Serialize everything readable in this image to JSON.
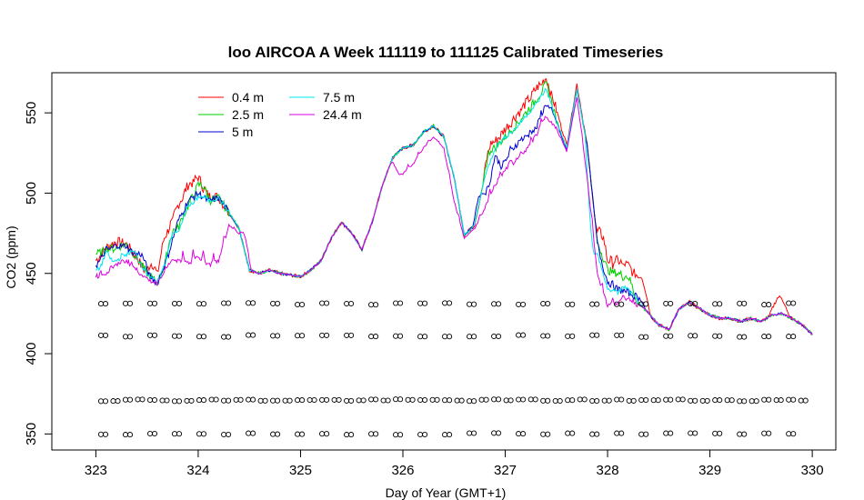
{
  "chart_data": {
    "type": "line",
    "title": "loo AIRCOA A  Week 111119 to 111125  Calibrated Timeseries",
    "xlabel": "Day of Year (GMT+1)",
    "ylabel": "CO2 (ppm)",
    "xlim": [
      322.57,
      330.23
    ],
    "ylim": [
      340,
      575
    ],
    "xticks": [
      323,
      324,
      325,
      326,
      327,
      328,
      329,
      330
    ],
    "xtick_labels": [
      "323",
      "324",
      "325",
      "326",
      "327",
      "328",
      "329",
      "330"
    ],
    "yticks": [
      350,
      400,
      450,
      500,
      550
    ],
    "ytick_labels": [
      "350",
      "400",
      "450",
      "500",
      "550"
    ],
    "grid": false,
    "legend_position": "top-left",
    "legend": [
      {
        "label": "0.4 m",
        "color": "#ff0000"
      },
      {
        "label": "2.5 m",
        "color": "#00cd00"
      },
      {
        "label": "5 m",
        "color": "#0000cd"
      },
      {
        "label": "7.5 m",
        "color": "#00e5ee"
      },
      {
        "label": "24.4 m",
        "color": "#dd00dd"
      }
    ],
    "base_series": {
      "x": [
        323.0,
        323.1,
        323.2,
        323.3,
        323.4,
        323.5,
        323.6,
        323.7,
        323.8,
        323.9,
        324.0,
        324.1,
        324.2,
        324.3,
        324.4,
        324.5,
        324.6,
        324.7,
        324.8,
        324.9,
        325.0,
        325.1,
        325.2,
        325.3,
        325.4,
        325.5,
        325.6,
        325.7,
        325.8,
        325.9,
        326.0,
        326.1,
        326.2,
        326.3,
        326.4,
        326.5,
        326.6,
        326.7,
        326.8,
        326.9,
        327.0,
        327.1,
        327.2,
        327.3,
        327.4,
        327.5,
        327.6,
        327.7,
        327.8,
        327.9,
        328.0,
        328.1,
        328.2,
        328.3,
        328.4,
        328.5,
        328.6,
        328.7,
        328.8,
        328.9,
        329.0,
        329.1,
        329.2,
        329.3,
        329.4,
        329.5,
        329.6,
        329.7,
        329.8,
        329.9,
        330.0
      ],
      "y": [
        458,
        466,
        470,
        468,
        460,
        450,
        444,
        460,
        482,
        495,
        500,
        495,
        497,
        488,
        478,
        452,
        450,
        452,
        450,
        449,
        448,
        452,
        458,
        472,
        482,
        475,
        465,
        482,
        505,
        522,
        528,
        530,
        538,
        542,
        535,
        510,
        474,
        480,
        510,
        528,
        535,
        540,
        548,
        555,
        565,
        545,
        528,
        565,
        530,
        470,
        448,
        445,
        440,
        432,
        425,
        418,
        415,
        428,
        432,
        428,
        424,
        422,
        422,
        420,
        422,
        420,
        424,
        425,
        422,
        418,
        412
      ]
    },
    "series": [
      {
        "label": "0.4 m",
        "color": "#ff0000",
        "x": [
          323.5,
          323.7,
          323.8,
          323.9,
          324.0,
          324.1,
          326.9,
          327.0,
          327.1,
          327.2,
          327.3,
          327.4,
          327.5,
          327.6,
          327.7,
          328.0,
          328.1,
          328.2,
          328.3,
          329.7
        ],
        "y": [
          452,
          476,
          492,
          505,
          510,
          498,
          532,
          540,
          548,
          556,
          565,
          572,
          552,
          530,
          568,
          458,
          458,
          455,
          448,
          435
        ]
      },
      {
        "label": "2.5 m",
        "color": "#00cd00",
        "x": [
          323.0,
          323.2,
          323.8,
          323.9,
          324.0,
          326.9,
          327.0,
          327.1,
          327.2,
          327.3,
          327.4,
          328.0,
          328.1,
          328.2
        ],
        "y": [
          462,
          466,
          478,
          492,
          505,
          528,
          535,
          542,
          550,
          558,
          568,
          452,
          450,
          448
        ]
      },
      {
        "label": "5 m",
        "color": "#0000cd",
        "x": [
          323.0,
          323.2,
          323.4,
          326.8,
          327.0,
          327.1,
          327.2,
          327.3,
          327.4,
          327.5,
          328.0,
          328.1,
          328.2,
          328.3
        ],
        "y": [
          455,
          468,
          462,
          500,
          520,
          530,
          535,
          540,
          556,
          545,
          445,
          440,
          438,
          435
        ]
      },
      {
        "label": "7.5 m",
        "color": "#00e5ee",
        "x": [
          323.0,
          323.2,
          323.3,
          323.8,
          324.0,
          327.9,
          328.0,
          328.1
        ],
        "y": [
          452,
          458,
          462,
          476,
          498,
          462,
          440,
          438
        ]
      },
      {
        "label": "24.4 m",
        "color": "#dd00dd",
        "x": [
          323.0,
          323.1,
          323.2,
          323.3,
          323.4,
          323.5,
          323.6,
          323.7,
          323.8,
          323.9,
          324.0,
          324.1,
          324.2,
          324.3,
          324.4,
          326.0,
          326.1,
          326.2,
          326.3,
          326.4,
          326.5,
          326.6,
          326.7,
          326.8,
          326.9,
          327.0,
          327.1,
          327.2,
          327.3,
          327.4,
          327.5,
          327.6,
          327.7,
          327.8,
          327.9,
          328.0,
          328.1,
          328.2,
          328.3
        ],
        "y": [
          448,
          450,
          455,
          458,
          452,
          446,
          444,
          455,
          458,
          456,
          460,
          455,
          458,
          480,
          475,
          512,
          518,
          528,
          535,
          528,
          495,
          472,
          478,
          490,
          505,
          515,
          520,
          526,
          536,
          548,
          540,
          526,
          560,
          510,
          450,
          430,
          432,
          435,
          430
        ]
      }
    ],
    "scatter_rows": [
      {
        "y": 431,
        "x_start": 323.05,
        "x_end": 330.0,
        "step": 0.24
      },
      {
        "y": 411,
        "x_start": 323.05,
        "x_end": 330.0,
        "step": 0.24
      },
      {
        "y": 371,
        "x_start": 323.05,
        "x_end": 330.0,
        "step": 0.12
      },
      {
        "y": 350,
        "x_start": 323.05,
        "x_end": 330.0,
        "step": 0.24
      }
    ]
  }
}
